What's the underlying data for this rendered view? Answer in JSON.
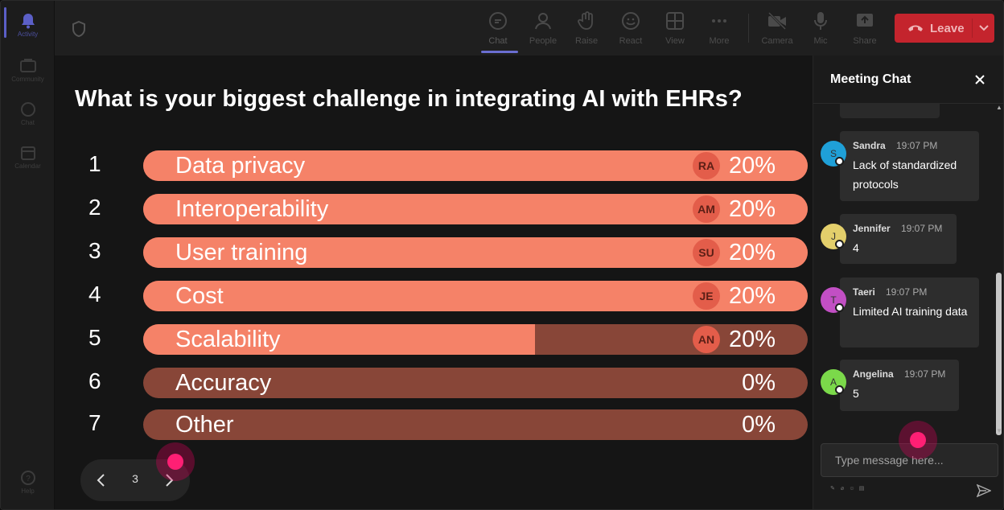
{
  "rail": {
    "items": [
      {
        "label": "Activity"
      },
      {
        "label": "Community"
      },
      {
        "label": "Chat"
      },
      {
        "label": "Calendar"
      },
      {
        "label": "Help"
      }
    ]
  },
  "topbar": {
    "buttons": [
      {
        "label": "Chat",
        "icon": "chat-icon"
      },
      {
        "label": "People",
        "icon": "people-icon"
      },
      {
        "label": "Raise",
        "icon": "raise-hand-icon"
      },
      {
        "label": "React",
        "icon": "react-icon"
      },
      {
        "label": "View",
        "icon": "view-icon"
      },
      {
        "label": "More",
        "icon": "more-icon"
      },
      {
        "label": "Camera",
        "icon": "camera-off-icon"
      },
      {
        "label": "Mic",
        "icon": "mic-icon"
      },
      {
        "label": "Share",
        "icon": "share-icon"
      }
    ],
    "leave_label": "Leave"
  },
  "poll": {
    "question": "What is your biggest challenge in integrating AI with EHRs?",
    "options": [
      {
        "num": "1",
        "label": "Data privacy",
        "percent": "20%",
        "avatar": "RA",
        "fill": 1.0
      },
      {
        "num": "2",
        "label": "Interoperability",
        "percent": "20%",
        "avatar": "AM",
        "fill": 1.0
      },
      {
        "num": "3",
        "label": "User training",
        "percent": "20%",
        "avatar": "SU",
        "fill": 1.0
      },
      {
        "num": "4",
        "label": "Cost",
        "percent": "20%",
        "avatar": "JE",
        "fill": 1.0
      },
      {
        "num": "5",
        "label": "Scalability",
        "percent": "20%",
        "avatar": "AN",
        "fill": 0.59
      },
      {
        "num": "6",
        "label": "Accuracy",
        "percent": "0%",
        "avatar": "",
        "fill": 0
      },
      {
        "num": "7",
        "label": "Other",
        "percent": "0%",
        "avatar": "",
        "fill": 0
      }
    ],
    "page": "3"
  },
  "chat": {
    "title": "Meeting Chat",
    "messages": [
      {
        "name": "Sandra",
        "initial": "S",
        "time": "19:07 PM",
        "text": "Lack of standardized protocols",
        "color": "#1fa0d8"
      },
      {
        "name": "Jennifer",
        "initial": "J",
        "time": "19:07 PM",
        "text": "4",
        "color": "#e3cf6b"
      },
      {
        "name": "Taeri",
        "initial": "T",
        "time": "19:07 PM",
        "text": "Limited AI training data",
        "color": "#c24fc4"
      },
      {
        "name": "Angelina",
        "initial": "A",
        "time": "19:07 PM",
        "text": "5",
        "color": "#7bd94a"
      }
    ],
    "composer_placeholder": "Type message here..."
  }
}
